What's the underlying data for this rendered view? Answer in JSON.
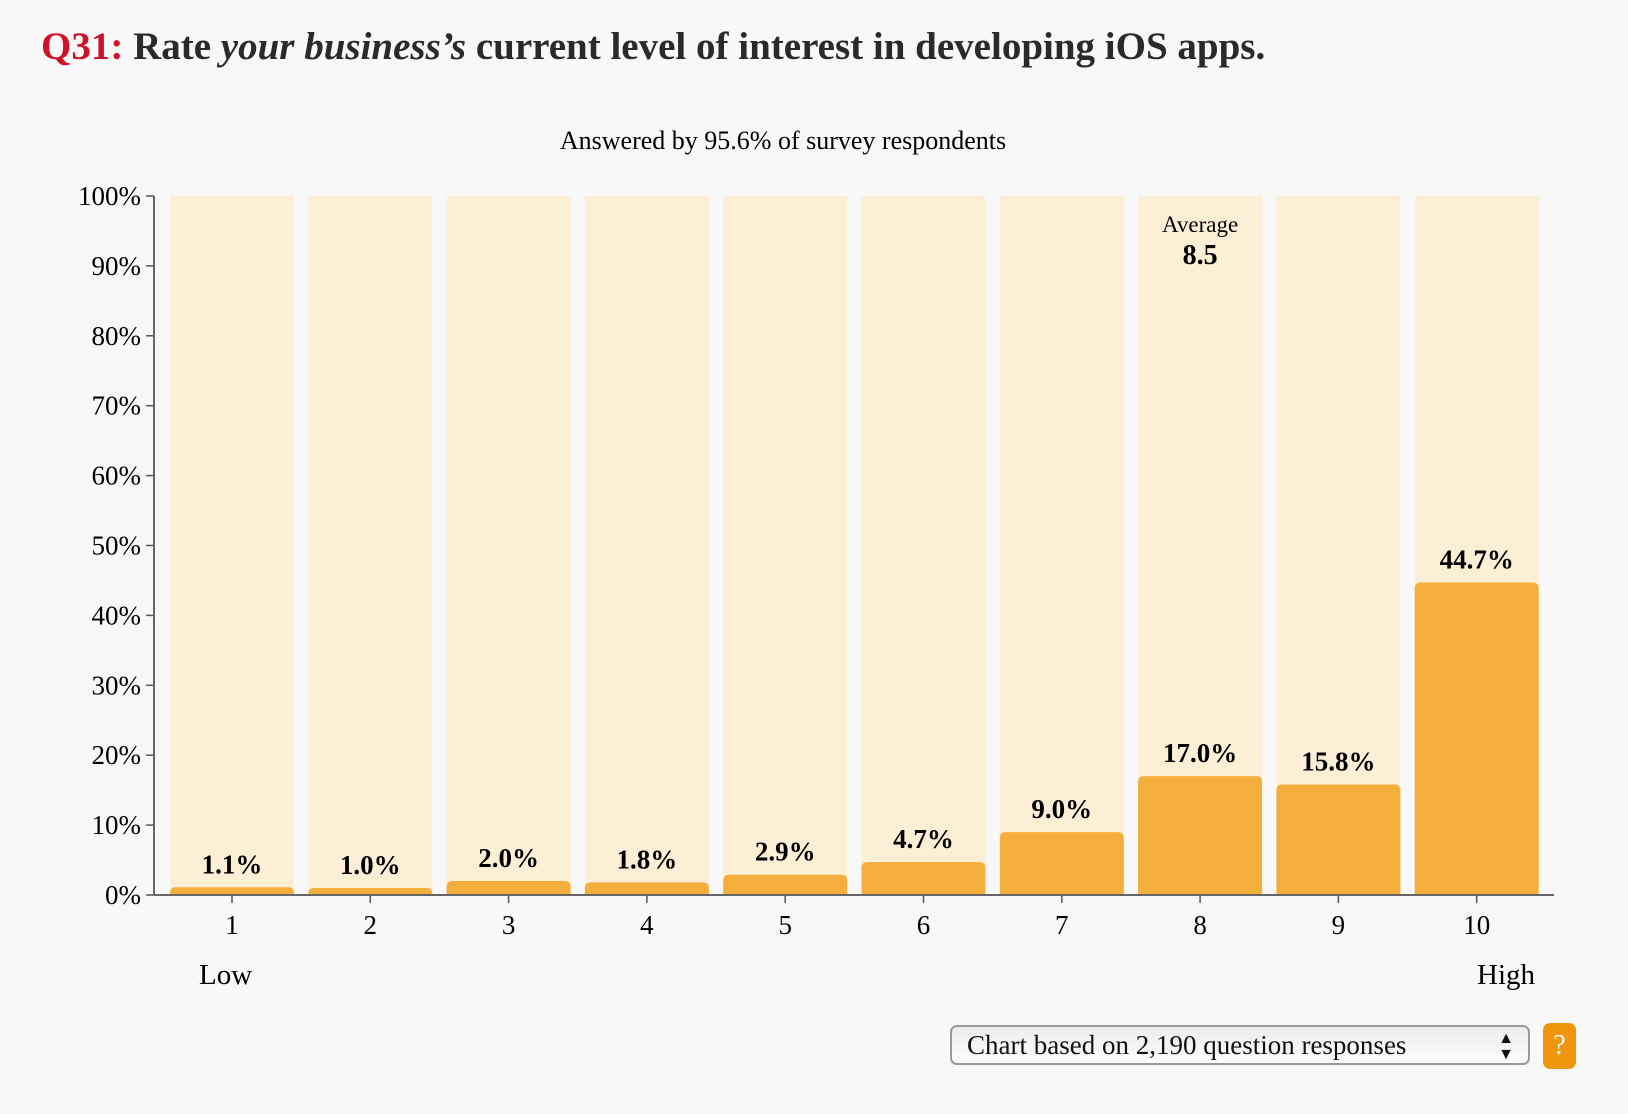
{
  "title": {
    "prefix": "Q31:",
    "part1": "Rate ",
    "emphasis": "your business’s",
    "part2": " current level of interest in developing iOS apps."
  },
  "chart_data": {
    "type": "bar",
    "subtitle": "Answered by 95.6% of survey respondents",
    "categories": [
      "1",
      "2",
      "3",
      "4",
      "5",
      "6",
      "7",
      "8",
      "9",
      "10"
    ],
    "values": [
      1.1,
      1.0,
      2.0,
      1.8,
      2.9,
      4.7,
      9.0,
      17.0,
      15.8,
      44.7
    ],
    "data_labels": [
      "1.1%",
      "1.0%",
      "2.0%",
      "1.8%",
      "2.9%",
      "4.7%",
      "9.0%",
      "17.0%",
      "15.8%",
      "44.7%"
    ],
    "yticks": [
      "0%",
      "10%",
      "20%",
      "30%",
      "40%",
      "50%",
      "60%",
      "70%",
      "80%",
      "90%",
      "100%"
    ],
    "ylim": [
      0,
      100
    ],
    "low_label": "Low",
    "high_label": "High",
    "average": {
      "label": "Average",
      "value": "8.5"
    },
    "colors": {
      "bar": "#f3ae3c",
      "background_bar": "#fdeed6",
      "title_accent": "#d0112b"
    }
  },
  "controls": {
    "select_value": "Chart based on 2,190 question responses",
    "help_label": "?"
  }
}
